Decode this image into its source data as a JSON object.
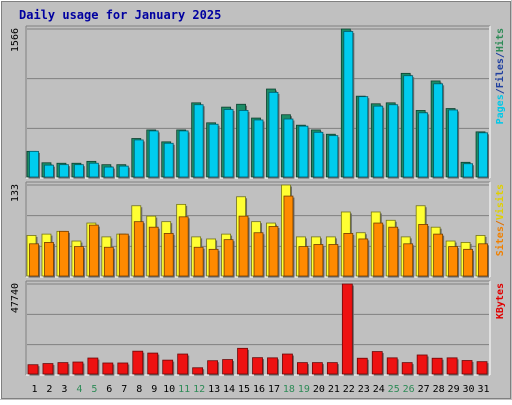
{
  "chart_data": {
    "type": "bar",
    "title": "Daily usage for January 2025",
    "days": [
      "1",
      "2",
      "3",
      "4",
      "5",
      "6",
      "7",
      "8",
      "9",
      "10",
      "11",
      "12",
      "13",
      "14",
      "15",
      "16",
      "17",
      "18",
      "19",
      "20",
      "21",
      "22",
      "23",
      "24",
      "25",
      "26",
      "27",
      "28",
      "29",
      "30",
      "31"
    ],
    "weekend_days": [
      4,
      5,
      11,
      12,
      18,
      19,
      25,
      26
    ],
    "panels": [
      {
        "max_label": "1566",
        "ymax": 1566,
        "legend": [
          {
            "text": "Hits",
            "color": "#2e8b57"
          },
          {
            "text": "/",
            "color": "#2040a0"
          },
          {
            "text": "Files",
            "color": "#2040a0"
          },
          {
            "text": "/",
            "color": "#2040a0"
          },
          {
            "text": "Pages",
            "color": "#00c8e8"
          }
        ],
        "series": [
          {
            "name": "Hits",
            "color": "#1c8c66",
            "values": [
              280,
              160,
              155,
              155,
              175,
              140,
              140,
              415,
              505,
              380,
              505,
              790,
              580,
              745,
              775,
              630,
              935,
              665,
              555,
              505,
              460,
              1566,
              860,
              780,
              790,
              1100,
              710,
              1020,
              730,
              165,
              485
            ]
          },
          {
            "name": "Files",
            "color": "#2a3fb0",
            "values": [
              150,
              90,
              85,
              85,
              95,
              75,
              75,
              225,
              275,
              205,
              275,
              430,
              315,
              405,
              420,
              340,
              505,
              360,
              300,
              275,
              250,
              850,
              465,
              420,
              430,
              595,
              385,
              550,
              395,
              90,
              260
            ]
          },
          {
            "name": "Pages",
            "color": "#00ccee",
            "values": [
              280,
              135,
              140,
              140,
              155,
              115,
              125,
              400,
              495,
              365,
              495,
              770,
              565,
              720,
              710,
              610,
              900,
              620,
              545,
              480,
              445,
              1540,
              855,
              755,
              770,
              1075,
              685,
              990,
              715,
              150,
              475
            ]
          }
        ]
      },
      {
        "max_label": "133",
        "ymax": 133,
        "legend": [
          {
            "text": "Visits",
            "color": "#e0d000"
          },
          {
            "text": "/",
            "color": "#e07000"
          },
          {
            "text": "Sites",
            "color": "#f08000"
          }
        ],
        "series": [
          {
            "name": "Visits",
            "color": "#ffff33",
            "values": [
              60,
              62,
              66,
              52,
              78,
              58,
              62,
              103,
              88,
              80,
              105,
              58,
              55,
              62,
              116,
              80,
              78,
              133,
              58,
              58,
              58,
              94,
              64,
              94,
              82,
              58,
              103,
              72,
              52,
              50,
              60
            ]
          },
          {
            "name": "Sites",
            "color": "#ff8a00",
            "values": [
              48,
              50,
              66,
              44,
              75,
              43,
              62,
              80,
              72,
              63,
              87,
              43,
              40,
              54,
              88,
              64,
              73,
              117,
              44,
              47,
              47,
              63,
              55,
              78,
              72,
              48,
              76,
              62,
              44,
              40,
              48
            ]
          }
        ]
      },
      {
        "max_label": "47740",
        "ymax": 47740,
        "legend": [
          {
            "text": "KBytes",
            "color": "#e00000"
          }
        ],
        "series": [
          {
            "name": "KBytes",
            "color": "#ee1111",
            "values": [
              5400,
              6000,
              6500,
              6800,
              8900,
              6300,
              6300,
              12500,
              11500,
              7800,
              11000,
              3800,
              7500,
              8100,
              14000,
              9100,
              9000,
              11000,
              6500,
              6500,
              6500,
              47740,
              8800,
              12300,
              9000,
              6500,
              10500,
              8800,
              9000,
              7600,
              7000
            ]
          }
        ]
      }
    ]
  }
}
